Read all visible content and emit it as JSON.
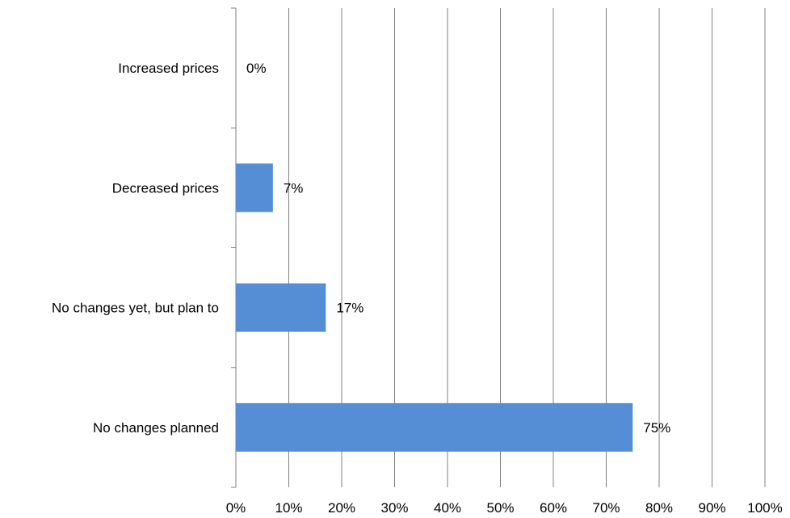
{
  "chart_data": {
    "type": "bar",
    "orientation": "horizontal",
    "title": "",
    "xlabel": "",
    "ylabel": "",
    "categories": [
      "Increased prices",
      "Decreased prices",
      "No changes yet, but plan to",
      "No changes planned"
    ],
    "values": [
      0,
      7,
      17,
      75
    ],
    "data_labels": [
      "0%",
      "7%",
      "17%",
      "75%"
    ],
    "xlim": [
      0,
      100
    ],
    "x_ticks": [
      "0%",
      "10%",
      "20%",
      "30%",
      "40%",
      "50%",
      "60%",
      "70%",
      "80%",
      "90%",
      "100%"
    ],
    "grid": "vertical",
    "legend": "none",
    "bar_color": "#558ED5",
    "grid_color": "#808080"
  }
}
